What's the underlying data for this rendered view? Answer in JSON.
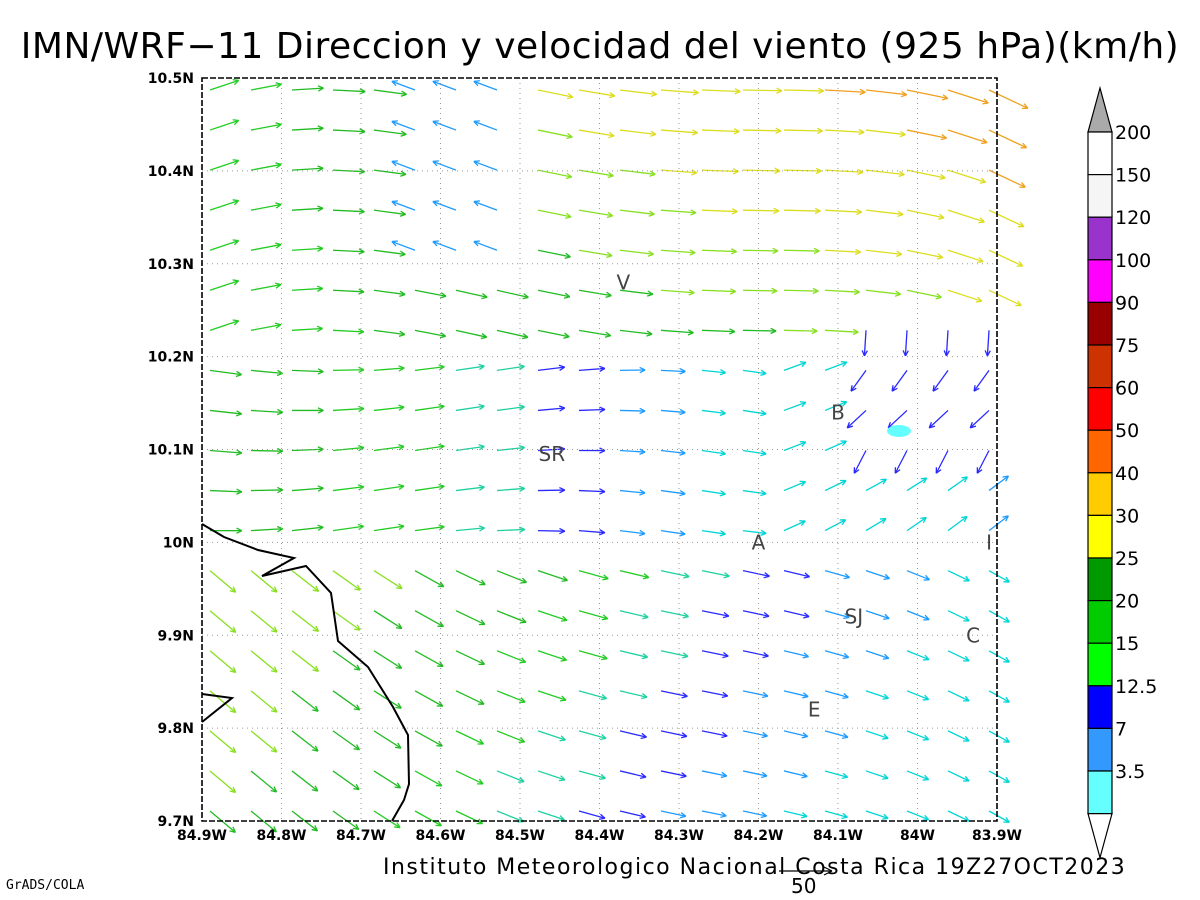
{
  "title": "IMN/WRF−11 Direccion y velocidad del viento (925 hPa)(km/h)",
  "footer": {
    "institution": "Instituto Meteorologico Nacional Costa Rica 19Z27OCT2023",
    "credit": "GrADS/COLA"
  },
  "reference_vector": {
    "value": "50"
  },
  "map": {
    "lon_range": [
      -84.9,
      -83.9
    ],
    "lat_range": [
      9.7,
      10.5
    ],
    "x_ticks": [
      "84.9W",
      "84.8W",
      "84.7W",
      "84.6W",
      "84.5W",
      "84.4W",
      "84.3W",
      "84.2W",
      "84.1W",
      "84W",
      "83.9W"
    ],
    "y_ticks": [
      "9.7N",
      "9.8N",
      "9.9N",
      "10N",
      "10.1N",
      "10.2N",
      "10.3N",
      "10.4N",
      "10.5N"
    ],
    "grid": "dotted",
    "coastline_color": "#000000",
    "cities": [
      {
        "name": "V",
        "lon": -84.37,
        "lat": 10.28
      },
      {
        "name": "B",
        "lon": -84.1,
        "lat": 10.14
      },
      {
        "name": "SR",
        "lon": -84.46,
        "lat": 10.095
      },
      {
        "name": "A",
        "lon": -84.2,
        "lat": 10.0
      },
      {
        "name": "I",
        "lon": -83.91,
        "lat": 10.0
      },
      {
        "name": "SJ",
        "lon": -84.08,
        "lat": 9.92
      },
      {
        "name": "C",
        "lon": -83.93,
        "lat": 9.9
      },
      {
        "name": "E",
        "lon": -84.13,
        "lat": 9.82
      }
    ]
  },
  "colorbar": {
    "labels": [
      "200",
      "150",
      "120",
      "100",
      "90",
      "75",
      "60",
      "50",
      "40",
      "30",
      "25",
      "20",
      "15",
      "12.5",
      "7",
      "3.5"
    ],
    "colors": [
      "#ffffff",
      "#f5f5f5",
      "#9933cc",
      "#ff00ff",
      "#990000",
      "#cc3300",
      "#ff0000",
      "#ff6600",
      "#ffcc00",
      "#ffff00",
      "#009900",
      "#00cc00",
      "#00ff00",
      "#0000ff",
      "#3399ff",
      "#66ffff"
    ],
    "top_arrow_color": "#aaaaaa",
    "bottom_arrow_color": "#ffffff"
  }
}
